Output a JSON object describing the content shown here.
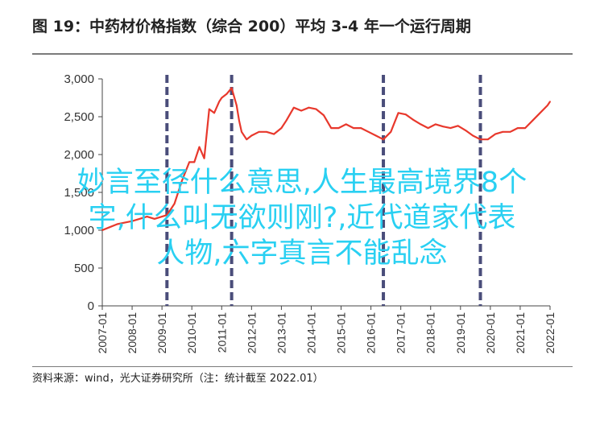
{
  "title": "图 19：中药材价格指数（综合 200）平均 3-4 年一个运行周期",
  "source": "资料来源：wind，光大证券研究所（注：统计截至 2022.01）",
  "overlay_text": [
    "妙言至径什么意思,人生最高境界8个",
    "字,什么叫无欲则刚?,近代道家代表",
    "人物,六字真言不能乱念"
  ],
  "colors": {
    "line": "#e8382c",
    "cycle_marker": "#4a4d7a",
    "overlay": "#29d0f2"
  },
  "chart_data": {
    "type": "line",
    "title": "图 19：中药材价格指数（综合 200）平均 3-4 年一个运行周期",
    "xlabel": "",
    "ylabel": "",
    "x_range": [
      "2007-01",
      "2022-01"
    ],
    "ylim": [
      0,
      3000
    ],
    "yticks": [
      0,
      500,
      1000,
      1500,
      2000,
      2500,
      3000
    ],
    "ytick_labels": [
      "0",
      "500",
      "1,000",
      "1,500",
      "2,000",
      "2,500",
      "3,000"
    ],
    "xtick_labels": [
      "2007-01",
      "2008-01",
      "2009-01",
      "2010-01",
      "2011-01",
      "2012-01",
      "2013-01",
      "2014-01",
      "2015-01",
      "2016-01",
      "2017-01",
      "2018-01",
      "2019-01",
      "2020-01",
      "2021-01",
      "2022-01"
    ],
    "grid": false,
    "legend": "none",
    "cycle_markers": [
      "2009-03",
      "2011-05",
      "2016-06",
      "2019-09"
    ],
    "series": [
      {
        "x": [
          "2007-01",
          "2007-04",
          "2007-07",
          "2007-10",
          "2008-01",
          "2008-04",
          "2008-07",
          "2008-10",
          "2009-01",
          "2009-03",
          "2009-06",
          "2009-09",
          "2009-12",
          "2010-02",
          "2010-04",
          "2010-06",
          "2010-08",
          "2010-10",
          "2010-12",
          "2011-01",
          "2011-03",
          "2011-05",
          "2011-07",
          "2011-08",
          "2011-09",
          "2011-11",
          "2012-01",
          "2012-04",
          "2012-07",
          "2012-10",
          "2013-01",
          "2013-03",
          "2013-06",
          "2013-09",
          "2013-12",
          "2014-03",
          "2014-06",
          "2014-09",
          "2014-12",
          "2015-03",
          "2015-06",
          "2015-09",
          "2015-12",
          "2016-03",
          "2016-06",
          "2016-09",
          "2016-12",
          "2017-03",
          "2017-06",
          "2017-09",
          "2017-12",
          "2018-03",
          "2018-06",
          "2018-09",
          "2018-12",
          "2019-03",
          "2019-06",
          "2019-09",
          "2019-12",
          "2020-03",
          "2020-06",
          "2020-09",
          "2020-12",
          "2021-03",
          "2021-06",
          "2021-09",
          "2021-12",
          "2022-01"
        ],
        "values": [
          1000,
          1040,
          1080,
          1100,
          1120,
          1150,
          1180,
          1150,
          1180,
          1200,
          1350,
          1650,
          1900,
          1900,
          2100,
          1950,
          2600,
          2550,
          2700,
          2750,
          2800,
          2880,
          2650,
          2450,
          2300,
          2200,
          2250,
          2300,
          2300,
          2270,
          2350,
          2450,
          2620,
          2580,
          2620,
          2600,
          2520,
          2350,
          2350,
          2400,
          2350,
          2350,
          2300,
          2250,
          2200,
          2300,
          2550,
          2530,
          2460,
          2400,
          2350,
          2400,
          2370,
          2350,
          2380,
          2320,
          2250,
          2200,
          2200,
          2270,
          2300,
          2300,
          2350,
          2350,
          2450,
          2550,
          2650,
          2700
        ]
      }
    ]
  }
}
